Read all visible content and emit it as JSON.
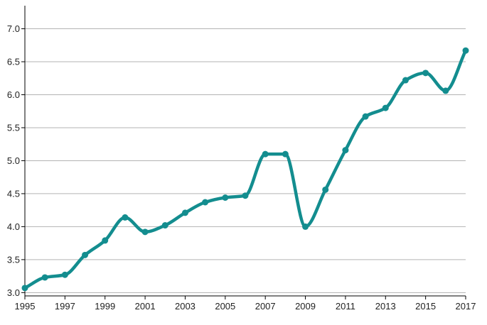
{
  "chart_data": {
    "type": "line",
    "title": "",
    "xlabel": "",
    "ylabel": "",
    "x": [
      1995,
      1996,
      1997,
      1998,
      1999,
      2000,
      2001,
      2002,
      2003,
      2004,
      2005,
      2006,
      2007,
      2008,
      2009,
      2010,
      2011,
      2012,
      2013,
      2014,
      2015,
      2016,
      2017
    ],
    "series": [
      {
        "values": [
          3.07,
          3.23,
          3.27,
          3.57,
          3.79,
          4.14,
          3.92,
          4.02,
          4.21,
          4.37,
          4.44,
          4.47,
          5.1,
          5.1,
          4.0,
          4.56,
          5.16,
          5.67,
          5.8,
          6.22,
          6.33,
          6.06,
          6.67
        ],
        "color": "#138d8f"
      }
    ],
    "xlim": [
      1995,
      2017
    ],
    "ylim": [
      2.95,
      7.35
    ],
    "x_ticks": [
      "1995",
      "1997",
      "1999",
      "2001",
      "2003",
      "2005",
      "2007",
      "2009",
      "2011",
      "2013",
      "2015",
      "2017"
    ],
    "y_ticks": [
      "3.0",
      "3.5",
      "4.0",
      "4.5",
      "5.0",
      "5.5",
      "6.0",
      "6.5",
      "7.0"
    ],
    "grid": "horizontal",
    "legend": "none",
    "line_style": "smooth-with-markers"
  }
}
